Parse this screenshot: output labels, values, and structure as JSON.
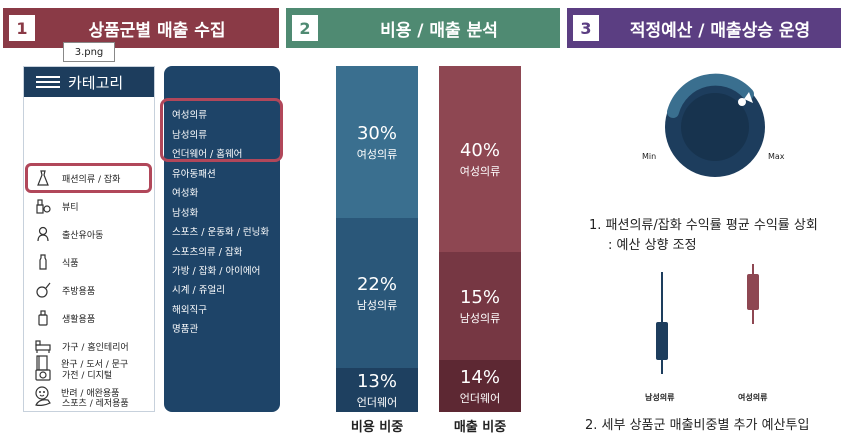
{
  "headers": [
    {
      "num": "1",
      "title": "상품군별 매출 수집"
    },
    {
      "num": "2",
      "title": "비용 / 매출 분석"
    },
    {
      "num": "3",
      "title": "적정예산 / 매출상승 운영"
    }
  ],
  "file_tag": "3.png",
  "categories": {
    "title": "카테고리",
    "items": [
      {
        "label": "패션의류 / 잡화",
        "icon": "dress-icon"
      },
      {
        "label": "뷰티",
        "icon": "cosmetics-icon"
      },
      {
        "label": "출산유아동",
        "icon": "baby-icon"
      },
      {
        "label": "식품",
        "icon": "bottle-icon"
      },
      {
        "label": "주방용품",
        "icon": "kitchen-icon"
      },
      {
        "label": "생활용품",
        "icon": "household-icon"
      },
      {
        "label": "가구 / 홈인테리어",
        "icon": "furniture-icon"
      },
      {
        "label": "가전 / 디지털",
        "icon": "appliance-icon"
      },
      {
        "label": "스포츠 / 레저용품",
        "icon": "sports-icon"
      },
      {
        "label": "완구 / 도서 / 문구",
        "icon": "book-icon"
      },
      {
        "label": "반려 / 애완용품",
        "icon": "pet-icon"
      }
    ]
  },
  "subcategories": [
    "여성의류",
    "남성의류",
    "언더웨어 / 홈웨어",
    "유아동패션",
    "여성화",
    "남성화",
    "스포츠 / 운동화 / 런닝화",
    "스포츠의류 / 잡화",
    "가방 / 잡화 / 아이에어",
    "시계 / 쥬얼리",
    "해외직구",
    "명품관"
  ],
  "cost_column": {
    "caption": "비용 비중",
    "segments": [
      {
        "pct": "30%",
        "label": "여성의류",
        "value": 30,
        "color": "#3a6f8f"
      },
      {
        "pct": "22%",
        "label": "남성의류",
        "value": 22,
        "color": "#2a5779"
      },
      {
        "pct": "13%",
        "label": "언더웨어",
        "value": 13,
        "color": "#1e4060"
      }
    ]
  },
  "sales_column": {
    "caption": "매출 비중",
    "segments": [
      {
        "pct": "40%",
        "label": "여성의류",
        "value": 40,
        "color": "#8e4752"
      },
      {
        "pct": "15%",
        "label": "남성의류",
        "value": 15,
        "color": "#763743"
      },
      {
        "pct": "14%",
        "label": "언더웨어",
        "value": 14,
        "color": "#5d2833"
      }
    ]
  },
  "section3": {
    "dial_min": "Min",
    "dial_max": "Max",
    "desc1_line1": "1. 패션의류/잡화 수익률 평균 수익률 상회",
    "desc1_line2": ": 예산 상향 조정",
    "candle_left": "남성의류",
    "candle_right": "여성의류",
    "desc2": "2. 세부 상품군 매출비중별 추가 예산투입"
  }
}
